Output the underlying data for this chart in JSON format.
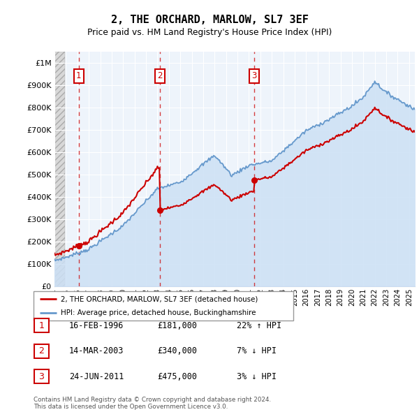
{
  "title": "2, THE ORCHARD, MARLOW, SL7 3EF",
  "subtitle": "Price paid vs. HM Land Registry's House Price Index (HPI)",
  "sale_dates_str": [
    "16-FEB-1996",
    "14-MAR-2003",
    "24-JUN-2011"
  ],
  "sale_prices_str": [
    "£181,000",
    "£340,000",
    "£475,000"
  ],
  "sale_pcts": [
    "22% ↑ HPI",
    "7% ↓ HPI",
    "3% ↓ HPI"
  ],
  "sale_years": [
    1996.125,
    2003.208,
    2011.458
  ],
  "sale_prices": [
    181000,
    340000,
    475000
  ],
  "legend_property": "2, THE ORCHARD, MARLOW, SL7 3EF (detached house)",
  "legend_hpi": "HPI: Average price, detached house, Buckinghamshire",
  "footer": "Contains HM Land Registry data © Crown copyright and database right 2024.\nThis data is licensed under the Open Government Licence v3.0.",
  "property_color": "#cc0000",
  "hpi_color": "#6699cc",
  "hpi_fill_color": "#cce0f5",
  "bg_color": "#eef4fb",
  "ylim": [
    0,
    1050000
  ],
  "xlim": [
    1994.0,
    2025.5
  ],
  "yticks": [
    0,
    100000,
    200000,
    300000,
    400000,
    500000,
    600000,
    700000,
    800000,
    900000,
    1000000
  ],
  "ytick_labels": [
    "£0",
    "£100K",
    "£200K",
    "£300K",
    "£400K",
    "£500K",
    "£600K",
    "£700K",
    "£800K",
    "£900K",
    "£1M"
  ]
}
